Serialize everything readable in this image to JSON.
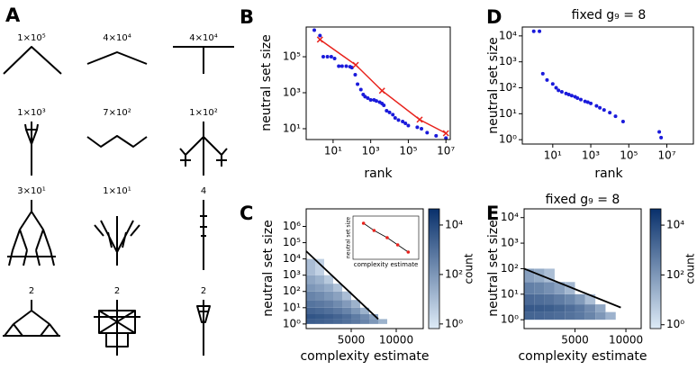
{
  "panel_a": {
    "letter": "A",
    "labels": [
      "1×10⁵",
      "4×10⁴",
      "4×10⁴",
      "1×10³",
      "7×10²",
      "1×10²",
      "3×10¹",
      "1×10¹",
      "4",
      "2",
      "2",
      "2"
    ]
  },
  "chart_data": [
    {
      "type": "scatter",
      "panel": "B",
      "xlabel": "rank",
      "ylabel": "neutral set size",
      "log_x": true,
      "log_y": true,
      "xlim": [
        0.37,
        17000000
      ],
      "ylim": [
        2.5,
        4500000
      ],
      "xticks": [
        {
          "value": 10,
          "label": "10¹"
        },
        {
          "value": 1000,
          "label": "10³"
        },
        {
          "value": 100000,
          "label": "10⁵"
        },
        {
          "value": 10000000,
          "label": "10⁷"
        }
      ],
      "yticks": [
        {
          "value": 10,
          "label": "10¹"
        },
        {
          "value": 1000,
          "label": "10³"
        },
        {
          "value": 100000,
          "label": "10⁵"
        }
      ],
      "series": [
        {
          "color": "#1a1adb",
          "marker": "dot",
          "x": [
            1,
            2,
            3,
            5,
            8,
            12,
            20,
            30,
            50,
            80,
            100,
            150,
            200,
            300,
            400,
            500,
            700,
            1000,
            1500,
            2000,
            3000,
            4000,
            5000,
            7000,
            10000,
            15000,
            20000,
            30000,
            50000,
            70000,
            100000,
            300000,
            500000,
            1000000,
            3000000,
            10000000
          ],
          "values": [
            3000000,
            1500000,
            100000,
            100000,
            100000,
            80000,
            30000,
            30000,
            30000,
            28000,
            25000,
            10000,
            3000,
            1500,
            800,
            600,
            500,
            400,
            400,
            350,
            300,
            250,
            200,
            100,
            80,
            60,
            40,
            30,
            25,
            20,
            15,
            12,
            10,
            6,
            4,
            3
          ]
        },
        {
          "color": "#e8221c",
          "marker": "x",
          "line": true,
          "x": [
            2,
            160,
            4000,
            400000,
            10000000
          ],
          "values": [
            900000,
            35000,
            1300,
            32,
            5.6
          ]
        }
      ]
    },
    {
      "type": "scatter",
      "panel": "D",
      "title": "fixed g₉ = 8",
      "xlabel": "rank",
      "ylabel": "neutral set size",
      "log_x": true,
      "log_y": true,
      "xlim": [
        0.25,
        250000000
      ],
      "ylim": [
        0.68,
        22000
      ],
      "xticks": [
        {
          "value": 10,
          "label": "10¹"
        },
        {
          "value": 1000,
          "label": "10³"
        },
        {
          "value": 100000,
          "label": "10⁵"
        },
        {
          "value": 10000000,
          "label": "10⁷"
        }
      ],
      "yticks": [
        {
          "value": 1,
          "label": "10⁰"
        },
        {
          "value": 10,
          "label": "10¹"
        },
        {
          "value": 100,
          "label": "10²"
        },
        {
          "value": 1000,
          "label": "10³"
        },
        {
          "value": 10000,
          "label": "10⁴"
        }
      ],
      "series": [
        {
          "color": "#1a1adb",
          "marker": "dot",
          "x": [
            1,
            2,
            3,
            5,
            10,
            15,
            20,
            30,
            50,
            70,
            100,
            150,
            200,
            300,
            500,
            700,
            1000,
            2000,
            3000,
            5000,
            10000,
            20000,
            50000,
            4000000,
            5000000
          ],
          "values": [
            15000,
            15000,
            350,
            200,
            140,
            100,
            80,
            70,
            60,
            55,
            50,
            45,
            40,
            35,
            30,
            28,
            25,
            20,
            17,
            14,
            11,
            8,
            5,
            2,
            1.2
          ]
        }
      ]
    },
    {
      "type": "heatmap",
      "panel": "C",
      "xlabel": "complexity estimate",
      "ylabel": "neutral set size",
      "log_y": true,
      "xlim": [
        0,
        13000
      ],
      "ylim": [
        0.52,
        12000000
      ],
      "xticks": [
        5000,
        10000
      ],
      "yticks": [
        {
          "value": 1,
          "label": "10⁰"
        },
        {
          "value": 10,
          "label": "10¹"
        },
        {
          "value": 100,
          "label": "10²"
        },
        {
          "value": 1000,
          "label": "10³"
        },
        {
          "value": 10000,
          "label": "10⁴"
        },
        {
          "value": 100000,
          "label": "10⁵"
        },
        {
          "value": 1000000,
          "label": "10⁶"
        }
      ],
      "xbins": [
        0,
        1000,
        2000,
        3000,
        4000,
        5000,
        6000,
        7000,
        8000,
        9000
      ],
      "ybins": [
        1,
        2,
        4,
        10,
        30,
        100,
        300,
        1000,
        10000
      ],
      "counts": [
        [
          3000,
          2500,
          2000,
          1500,
          1000,
          600,
          300,
          100,
          20
        ],
        [
          5000,
          4000,
          3000,
          2000,
          1200,
          500,
          200,
          50,
          null
        ],
        [
          2000,
          1500,
          1000,
          600,
          300,
          100,
          20,
          null,
          null
        ],
        [
          800,
          600,
          400,
          200,
          80,
          20,
          null,
          null,
          null
        ],
        [
          300,
          200,
          100,
          50,
          10,
          null,
          null,
          null,
          null
        ],
        [
          100,
          60,
          30,
          8,
          null,
          null,
          null,
          null,
          null
        ],
        [
          40,
          20,
          5,
          null,
          null,
          null,
          null,
          null,
          null
        ],
        [
          10,
          3,
          null,
          null,
          null,
          null,
          null,
          null,
          null
        ]
      ],
      "fit_line": {
        "color": "#000000",
        "x": [
          0,
          8000
        ],
        "values": [
          30000,
          2
        ]
      },
      "colorbar": {
        "label": "count",
        "lim": [
          0.65,
          45000
        ],
        "ticks": [
          {
            "value": 1,
            "label": "10⁰"
          },
          {
            "value": 100,
            "label": "10²"
          },
          {
            "value": 10000,
            "label": "10⁴"
          }
        ]
      },
      "inset": {
        "xlabel": "complexity estimate",
        "ylabel": "neutral set size",
        "log_y": true,
        "xlim": [
          5,
          30
        ],
        "ylim": [
          10,
          10000000
        ],
        "color": "#e8221c",
        "x": [
          9,
          13,
          18,
          22,
          26
        ],
        "values": [
          1000000,
          100000,
          10000,
          1000,
          100
        ]
      }
    },
    {
      "type": "heatmap",
      "panel": "E",
      "title": "fixed g₉ = 8",
      "xlabel": "complexity estimate",
      "ylabel": "neutral set size",
      "log_y": true,
      "xlim": [
        0,
        11500
      ],
      "ylim": [
        0.45,
        22000
      ],
      "xticks": [
        5000,
        10000
      ],
      "yticks": [
        {
          "value": 1,
          "label": "10⁰"
        },
        {
          "value": 10,
          "label": "10¹"
        },
        {
          "value": 100,
          "label": "10²"
        },
        {
          "value": 1000,
          "label": "10³"
        },
        {
          "value": 10000,
          "label": "10⁴"
        }
      ],
      "xbins": [
        0,
        1000,
        2000,
        3000,
        4000,
        5000,
        6000,
        7000,
        8000,
        9000
      ],
      "ybins": [
        1,
        2,
        4,
        10,
        30,
        100
      ],
      "counts": [
        [
          2000,
          1800,
          1500,
          1200,
          900,
          600,
          300,
          100,
          20
        ],
        [
          4000,
          3500,
          3000,
          2000,
          1200,
          600,
          200,
          40,
          null
        ],
        [
          1500,
          1200,
          900,
          500,
          250,
          80,
          10,
          null,
          null
        ],
        [
          400,
          300,
          150,
          60,
          15,
          null,
          null,
          null,
          null
        ],
        [
          60,
          30,
          10,
          null,
          null,
          null,
          null,
          null,
          null
        ]
      ],
      "fit_line": {
        "color": "#000000",
        "x": [
          0,
          9500
        ],
        "values": [
          100,
          3
        ]
      },
      "colorbar": {
        "label": "count",
        "lim": [
          0.7,
          45000
        ],
        "ticks": [
          {
            "value": 1,
            "label": "10⁰"
          },
          {
            "value": 100,
            "label": "10²"
          },
          {
            "value": 10000,
            "label": "10⁴"
          }
        ]
      }
    }
  ]
}
